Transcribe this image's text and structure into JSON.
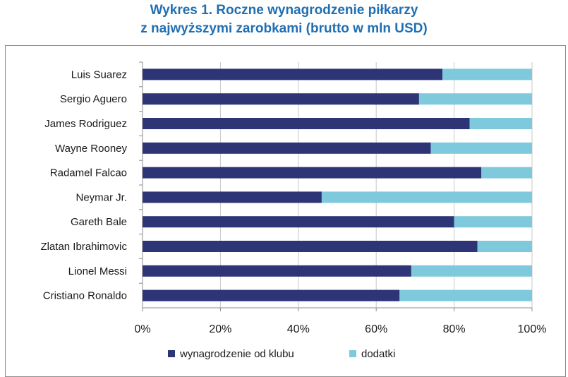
{
  "chart_data": {
    "type": "bar",
    "orientation": "horizontal",
    "stacked": "percent",
    "title_line1": "Wykres 1. Roczne wynagrodzenie piłkarzy",
    "title_line2": "z najwyższymi zarobkami (brutto w mln USD)",
    "categories": [
      "Luis Suarez",
      "Sergio Aguero",
      "James Rodriguez",
      "Wayne Rooney",
      "Radamel Falcao",
      "Neymar Jr.",
      "Gareth Bale",
      "Zlatan Ibrahimovic",
      "Lionel Messi",
      "Cristiano Ronaldo"
    ],
    "series": [
      {
        "name": "wynagrodzenie od klubu",
        "values": [
          77,
          71,
          84,
          74,
          87,
          46,
          80,
          86,
          69,
          66
        ]
      },
      {
        "name": "dodatki",
        "values": [
          23,
          29,
          16,
          26,
          13,
          54,
          20,
          14,
          31,
          34
        ]
      }
    ],
    "x_ticks": [
      "0%",
      "20%",
      "40%",
      "60%",
      "80%",
      "100%"
    ],
    "xlim": [
      0,
      100
    ],
    "grid": true,
    "legend_position": "bottom",
    "colors": {
      "wynagrodzenie od klubu": "#2e3576",
      "dodatki": "#7fc9dc",
      "title": "#1f6fb2",
      "grid": "#c8c8c8"
    }
  }
}
